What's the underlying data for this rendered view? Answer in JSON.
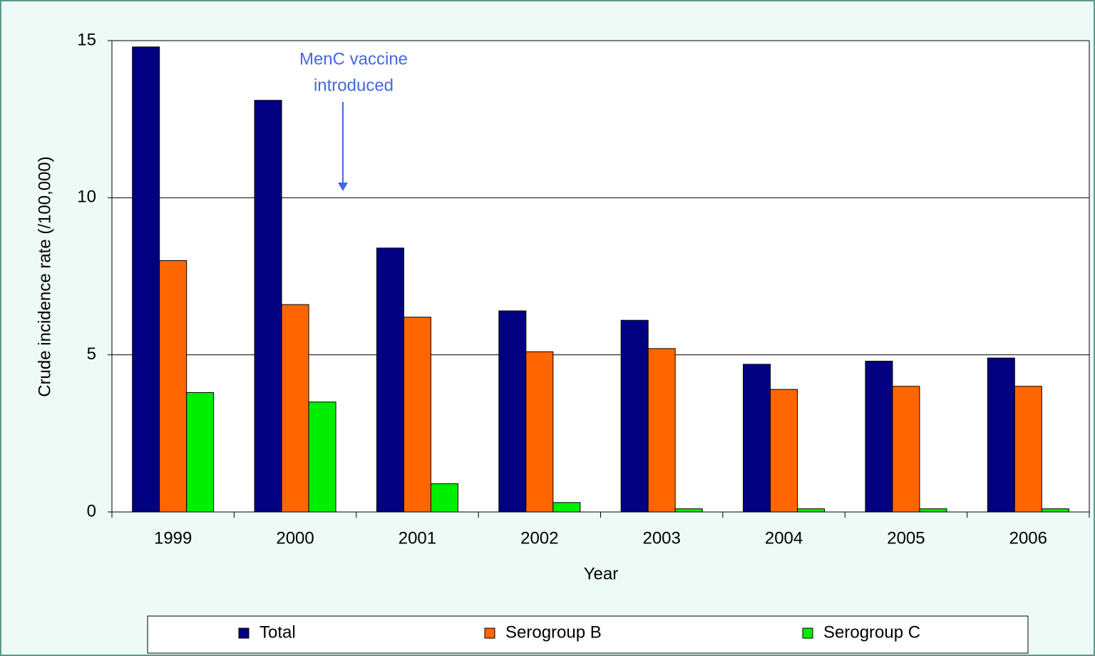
{
  "chart_data": {
    "type": "bar",
    "x_label": "Year",
    "y_label": "Crude incidence rate (/100,000)",
    "annotation": [
      "MenC vaccine",
      "introduced"
    ],
    "categories": [
      "1999",
      "2000",
      "2001",
      "2002",
      "2003",
      "2004",
      "2005",
      "2006"
    ],
    "series": [
      {
        "name": "Total",
        "color": "#000080",
        "values": [
          14.8,
          13.1,
          8.4,
          6.4,
          6.1,
          4.7,
          4.8,
          4.9
        ]
      },
      {
        "name": "Serogroup B",
        "color": "#ff6600",
        "values": [
          8.0,
          6.6,
          6.2,
          5.1,
          5.2,
          3.9,
          4.0,
          4.0
        ]
      },
      {
        "name": "Serogroup C",
        "color": "#00ee00",
        "values": [
          3.8,
          3.5,
          0.9,
          0.3,
          0.1,
          0.1,
          0.1,
          0.1
        ]
      }
    ],
    "ylim": [
      0,
      15
    ],
    "yticks": [
      0,
      5,
      10,
      15
    ],
    "grid": true,
    "legend": "bottom"
  }
}
